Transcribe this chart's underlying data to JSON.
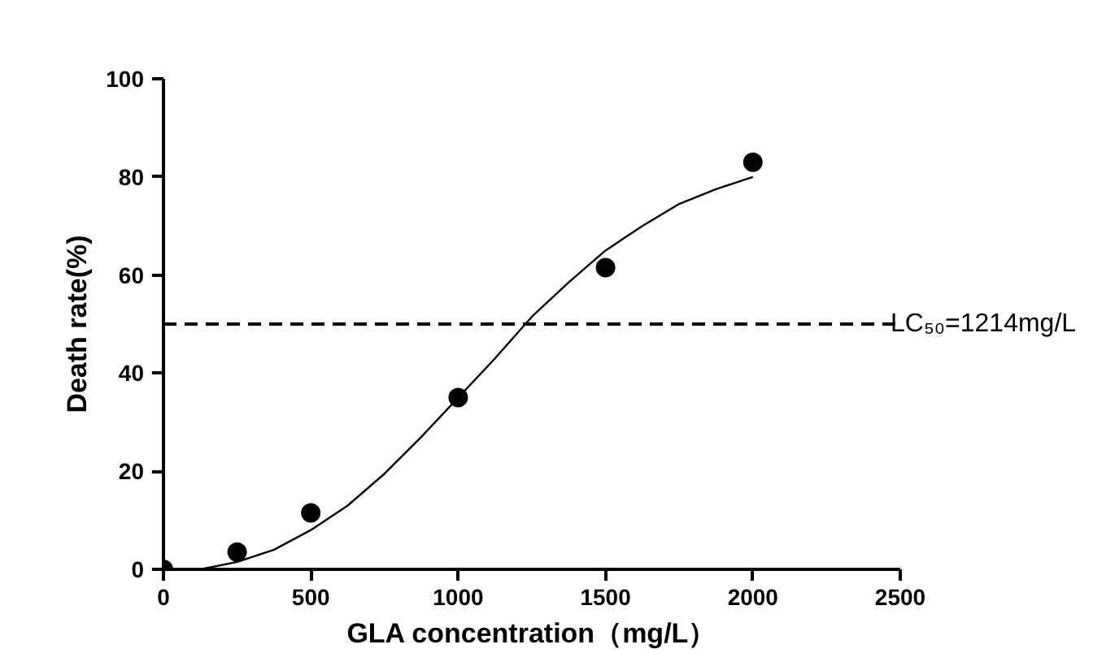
{
  "chart_data": {
    "type": "scatter",
    "xlabel": "GLA concentration（mg/L）",
    "ylabel": "Death rate(%)",
    "xlim": [
      0,
      2500
    ],
    "ylim": [
      0,
      100
    ],
    "xticks": [
      0,
      500,
      1000,
      1500,
      2000,
      2500
    ],
    "yticks": [
      0,
      20,
      40,
      60,
      80,
      100
    ],
    "grid": false,
    "series": [
      {
        "color": "#000000",
        "marker": "circle",
        "x": [
          0,
          250,
          500,
          1000,
          1500,
          2000
        ],
        "values": [
          0,
          3.5,
          11.5,
          35,
          61.5,
          83
        ]
      },
      {
        "type": "line",
        "color": "#000000",
        "line_style": "solid",
        "x": [
          0,
          125,
          250,
          375,
          500,
          625,
          750,
          875,
          1000,
          1125,
          1250,
          1375,
          1500,
          1625,
          1750,
          1875,
          2000
        ],
        "values": [
          0,
          0,
          1.5,
          4,
          8,
          13,
          19.5,
          27,
          35,
          43,
          51.5,
          58.5,
          65,
          70,
          74.5,
          77.5,
          80
        ]
      }
    ],
    "ref_lines": [
      {
        "axis": "y",
        "value": 50,
        "color": "#000000",
        "line_style": "dashed"
      }
    ],
    "annotations": [
      "LC₅₀=1214mg/L"
    ]
  }
}
